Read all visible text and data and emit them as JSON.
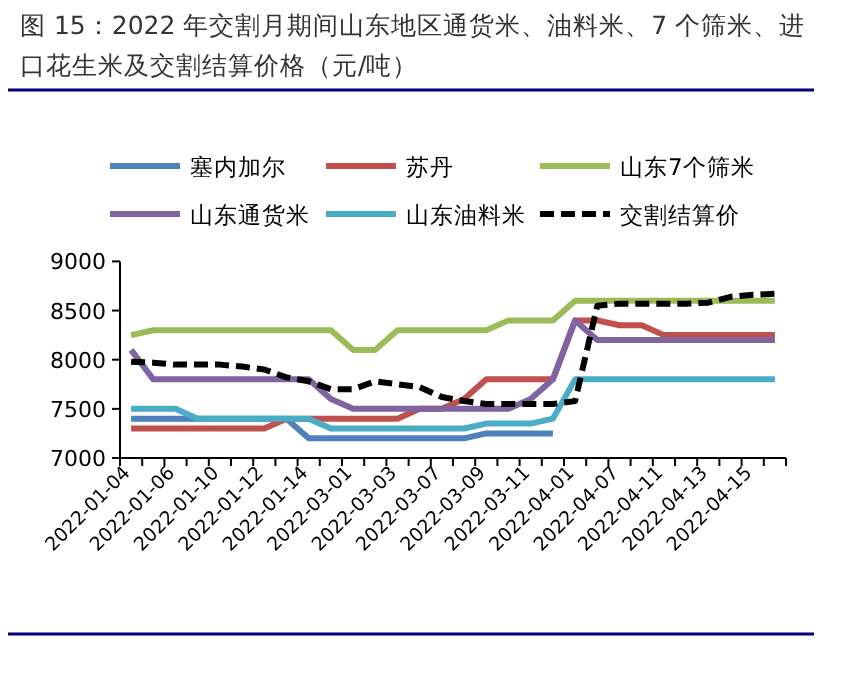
{
  "chart_data": {
    "type": "line",
    "title": "图 15：2022 年交割月期间山东地区通货米、油料米、7 个筛米、进口花生米及交割结算价格（元/吨）",
    "categories": [
      "2022-01-04",
      null,
      "2022-01-06",
      null,
      "2022-01-10",
      null,
      "2022-01-12",
      null,
      "2022-01-14",
      null,
      "2022-03-01",
      null,
      "2022-03-03",
      null,
      "2022-03-07",
      null,
      "2022-03-09",
      null,
      "2022-03-11",
      null,
      "2022-04-01",
      null,
      "2022-04-07",
      null,
      "2022-04-11",
      null,
      "2022-04-13",
      null,
      "2022-04-15",
      null
    ],
    "series": [
      {
        "name": "塞内加尔",
        "color": "#4f81bd",
        "values": [
          7400,
          7400,
          7400,
          7400,
          7400,
          7400,
          7400,
          7400,
          7200,
          7200,
          7200,
          7200,
          7200,
          7200,
          7200,
          7200,
          7250,
          7250,
          7250,
          7250,
          null,
          null,
          null,
          null,
          null,
          null,
          null,
          null,
          null,
          null
        ]
      },
      {
        "name": "苏丹",
        "color": "#c0504d",
        "values": [
          7300,
          7300,
          7300,
          7300,
          7300,
          7300,
          7300,
          7400,
          7400,
          7400,
          7400,
          7400,
          7400,
          7500,
          7500,
          7600,
          7800,
          7800,
          7800,
          7800,
          8400,
          8400,
          8350,
          8350,
          8250,
          8250,
          8250,
          8250,
          8250,
          8250
        ]
      },
      {
        "name": "山东7个筛米",
        "color": "#9bbb59",
        "values": [
          8250,
          8300,
          8300,
          8300,
          8300,
          8300,
          8300,
          8300,
          8300,
          8300,
          8100,
          8100,
          8300,
          8300,
          8300,
          8300,
          8300,
          8400,
          8400,
          8400,
          8600,
          8600,
          8600,
          8600,
          8600,
          8600,
          8600,
          8600,
          8600,
          8600
        ]
      },
      {
        "name": "山东通货米",
        "color": "#8064a2",
        "values": [
          8100,
          7800,
          7800,
          7800,
          7800,
          7800,
          7800,
          7800,
          7800,
          7600,
          7500,
          7500,
          7500,
          7500,
          7500,
          7500,
          7500,
          7500,
          7600,
          7800,
          8400,
          8200,
          8200,
          8200,
          8200,
          8200,
          8200,
          8200,
          8200,
          8200
        ]
      },
      {
        "name": "山东油料米",
        "color": "#4bacc6",
        "values": [
          7500,
          7500,
          7500,
          7400,
          7400,
          7400,
          7400,
          7400,
          7400,
          7300,
          7300,
          7300,
          7300,
          7300,
          7300,
          7300,
          7350,
          7350,
          7350,
          7400,
          7800,
          7800,
          7800,
          7800,
          7800,
          7800,
          7800,
          7800,
          7800,
          7800
        ]
      },
      {
        "name": "交割结算价",
        "color": "#000000",
        "line_style": "dashed",
        "values": [
          7980,
          7970,
          7950,
          7950,
          7950,
          7930,
          7900,
          7820,
          7780,
          7700,
          7700,
          7780,
          7750,
          7720,
          7620,
          7580,
          7550,
          7550,
          7550,
          7550,
          7580,
          8550,
          8570,
          8570,
          8570,
          8570,
          8580,
          8640,
          8660,
          8670
        ]
      }
    ],
    "ylim": [
      7000,
      9000
    ],
    "yticks": [
      7000,
      7500,
      8000,
      8500,
      9000
    ],
    "legend": "top"
  }
}
